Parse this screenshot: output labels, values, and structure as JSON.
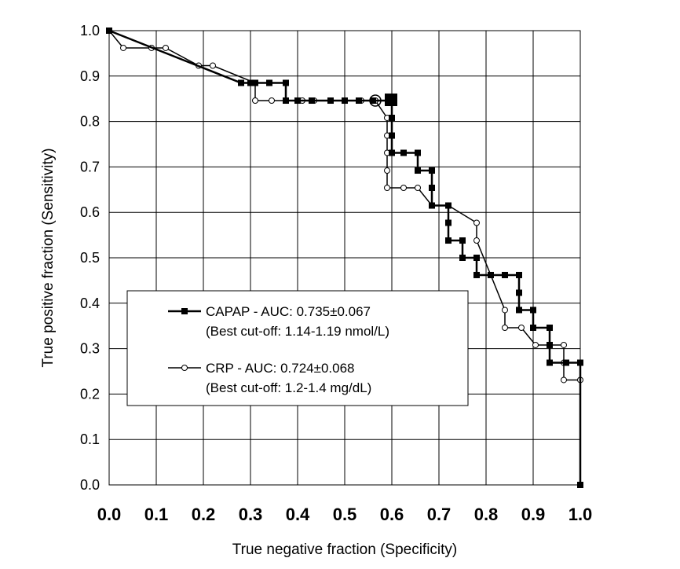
{
  "chart_data": {
    "type": "line",
    "xlabel": "True negative fraction (Specificity)",
    "ylabel": "True positive fraction (Sensitivity)",
    "xlim": [
      0.0,
      1.0
    ],
    "ylim": [
      0.0,
      1.0
    ],
    "xticks": [
      "0.0",
      "0.1",
      "0.2",
      "0.3",
      "0.4",
      "0.5",
      "0.6",
      "0.7",
      "0.8",
      "0.9",
      "1.0"
    ],
    "yticks": [
      "0.0",
      "0.1",
      "0.2",
      "0.3",
      "0.4",
      "0.5",
      "0.6",
      "0.7",
      "0.8",
      "0.9",
      "1.0"
    ],
    "grid": true,
    "legend_position": "center-left",
    "series": [
      {
        "name": "CAPAP - AUC: 0.735±0.067",
        "note": "(Best cut-off: 1.14-1.19 nmol/L)",
        "marker": "filled-square",
        "color": "#000000",
        "points": [
          [
            0.0,
            1.0
          ],
          [
            0.28,
            0.885
          ],
          [
            0.3,
            0.885
          ],
          [
            0.31,
            0.885
          ],
          [
            0.34,
            0.885
          ],
          [
            0.375,
            0.885
          ],
          [
            0.375,
            0.846
          ],
          [
            0.4,
            0.846
          ],
          [
            0.43,
            0.846
          ],
          [
            0.47,
            0.846
          ],
          [
            0.5,
            0.846
          ],
          [
            0.53,
            0.846
          ],
          [
            0.56,
            0.846
          ],
          [
            0.6,
            0.846
          ],
          [
            0.6,
            0.808
          ],
          [
            0.6,
            0.769
          ],
          [
            0.6,
            0.731
          ],
          [
            0.625,
            0.731
          ],
          [
            0.655,
            0.731
          ],
          [
            0.655,
            0.692
          ],
          [
            0.685,
            0.692
          ],
          [
            0.685,
            0.654
          ],
          [
            0.685,
            0.615
          ],
          [
            0.72,
            0.615
          ],
          [
            0.72,
            0.577
          ],
          [
            0.72,
            0.538
          ],
          [
            0.75,
            0.538
          ],
          [
            0.75,
            0.5
          ],
          [
            0.78,
            0.5
          ],
          [
            0.78,
            0.462
          ],
          [
            0.81,
            0.462
          ],
          [
            0.84,
            0.462
          ],
          [
            0.87,
            0.462
          ],
          [
            0.87,
            0.423
          ],
          [
            0.87,
            0.385
          ],
          [
            0.9,
            0.385
          ],
          [
            0.9,
            0.346
          ],
          [
            0.935,
            0.346
          ],
          [
            0.935,
            0.308
          ],
          [
            0.935,
            0.269
          ],
          [
            0.97,
            0.269
          ],
          [
            1.0,
            0.269
          ],
          [
            1.0,
            0.0
          ]
        ],
        "best_cutoff_point": [
          0.6,
          0.846
        ]
      },
      {
        "name": "CRP - AUC: 0.724±0.068",
        "note": "(Best cut-off: 1.2-1.4 mg/dL)",
        "marker": "open-circle",
        "color": "#000000",
        "points": [
          [
            0.0,
            1.0
          ],
          [
            0.03,
            0.962
          ],
          [
            0.09,
            0.962
          ],
          [
            0.12,
            0.962
          ],
          [
            0.19,
            0.923
          ],
          [
            0.22,
            0.923
          ],
          [
            0.31,
            0.885
          ],
          [
            0.31,
            0.846
          ],
          [
            0.345,
            0.846
          ],
          [
            0.375,
            0.846
          ],
          [
            0.41,
            0.846
          ],
          [
            0.435,
            0.846
          ],
          [
            0.47,
            0.846
          ],
          [
            0.5,
            0.846
          ],
          [
            0.535,
            0.846
          ],
          [
            0.565,
            0.846
          ],
          [
            0.59,
            0.808
          ],
          [
            0.59,
            0.769
          ],
          [
            0.59,
            0.731
          ],
          [
            0.59,
            0.692
          ],
          [
            0.59,
            0.654
          ],
          [
            0.625,
            0.654
          ],
          [
            0.655,
            0.654
          ],
          [
            0.685,
            0.615
          ],
          [
            0.72,
            0.615
          ],
          [
            0.78,
            0.577
          ],
          [
            0.78,
            0.538
          ],
          [
            0.81,
            0.462
          ],
          [
            0.84,
            0.385
          ],
          [
            0.84,
            0.346
          ],
          [
            0.875,
            0.346
          ],
          [
            0.905,
            0.308
          ],
          [
            0.935,
            0.308
          ],
          [
            0.965,
            0.308
          ],
          [
            0.965,
            0.269
          ],
          [
            0.965,
            0.231
          ],
          [
            1.0,
            0.231
          ],
          [
            1.0,
            0.0
          ]
        ],
        "best_cutoff_point": [
          0.565,
          0.846
        ]
      }
    ]
  }
}
